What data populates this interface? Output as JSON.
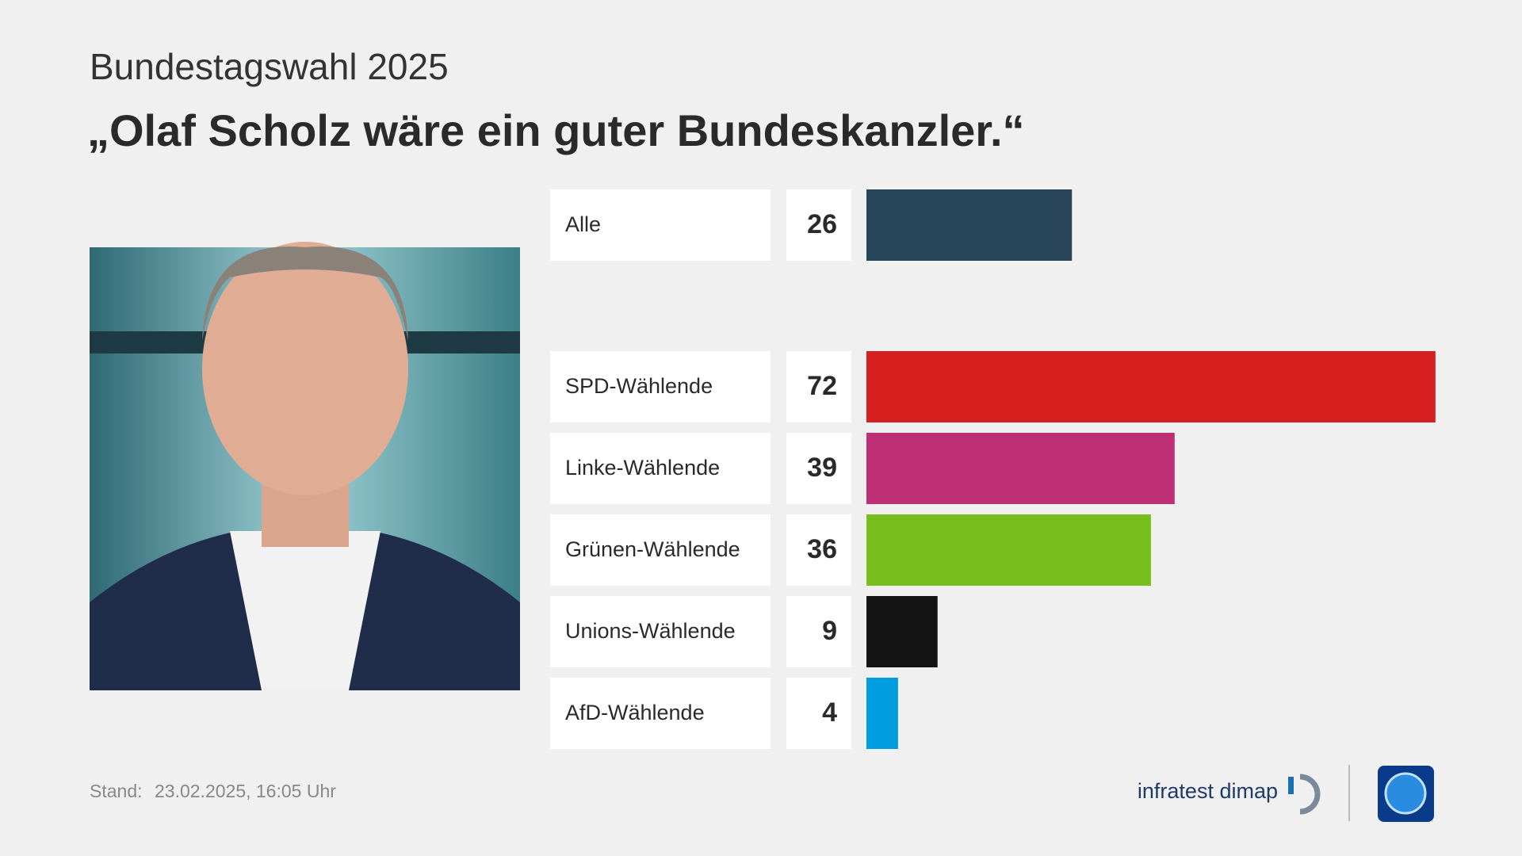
{
  "chart_data": {
    "type": "bar",
    "subtitle": "Bundestagswahl 2025",
    "title": "„Olaf Scholz wäre ein guter Bundeskanzler.“",
    "categories": [
      "Alle",
      "SPD-Wählende",
      "Linke-Wählende",
      "Grünen-Wählende",
      "Unions-Wählende",
      "AfD-Wählende"
    ],
    "values": [
      26,
      72,
      39,
      36,
      9,
      4
    ],
    "colors": [
      "#284559",
      "#d61f1f",
      "#be3075",
      "#78bf1e",
      "#141414",
      "#009de0"
    ]
  },
  "footer": {
    "stand_label": "Stand:",
    "stand_date": "23.02.2025, 16:05 Uhr",
    "source": "infratest dimap"
  }
}
